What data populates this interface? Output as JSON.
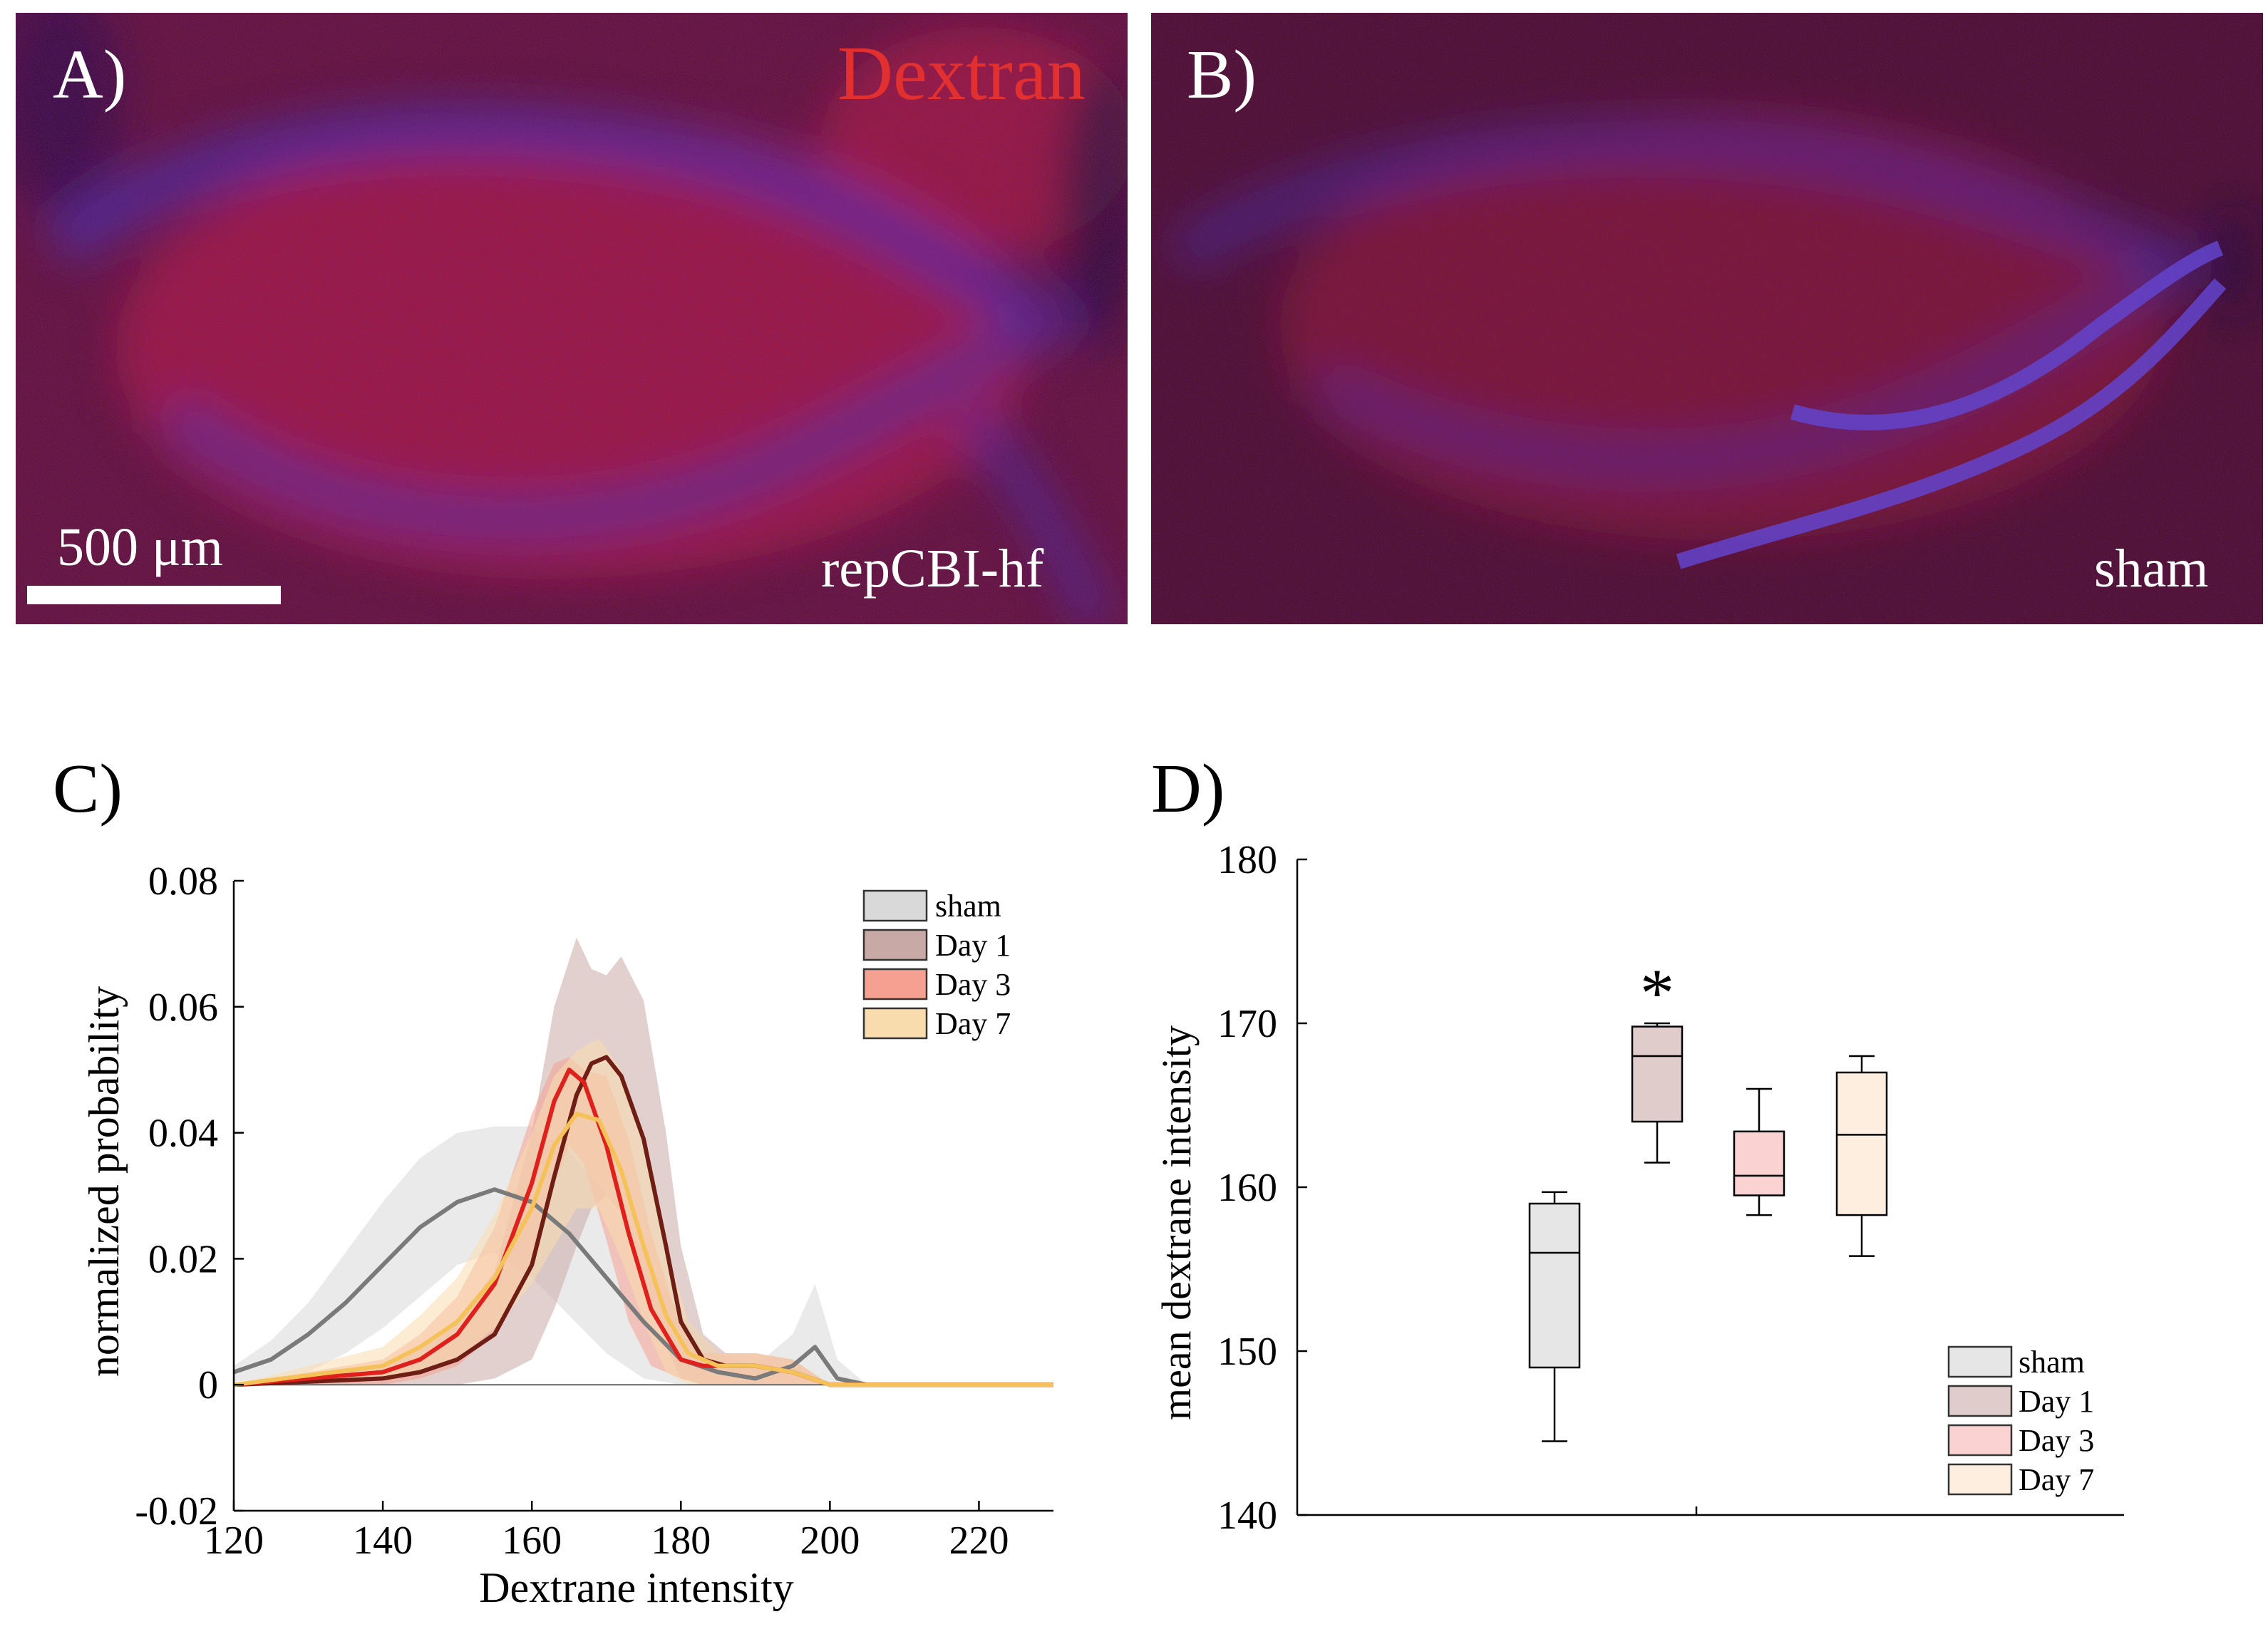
{
  "panels": {
    "a": {
      "label": "A)",
      "stain_label": "Dextran",
      "scale_bar_label": "500 μm",
      "condition_label": "repCBI-hf",
      "colors": {
        "base": "#5a0a1e",
        "red": "#c0142a",
        "blue": "#3a2aa8"
      }
    },
    "b": {
      "label": "B)",
      "condition_label": "sham",
      "colors": {
        "base": "#450816",
        "red": "#9a1022",
        "blue": "#3a2aa8"
      }
    },
    "c": {
      "label": "C)"
    },
    "d": {
      "label": "D)"
    }
  },
  "chart_data": [
    {
      "panel": "C",
      "type": "line",
      "title": "",
      "xlabel": "Dextrane intensity",
      "ylabel": "normalized probability",
      "xlim": [
        120,
        230
      ],
      "ylim": [
        -0.02,
        0.08
      ],
      "xticks": [
        120,
        140,
        160,
        180,
        200,
        220
      ],
      "xtick_labels": [
        "120",
        "140",
        "160",
        "180",
        "200",
        "220"
      ],
      "yticks": [
        -0.02,
        0,
        0.02,
        0.04,
        0.06,
        0.08
      ],
      "ytick_labels": [
        "-0.02",
        "0",
        "0.02",
        "0.04",
        "0.06",
        "0.08"
      ],
      "legend": {
        "position": "top-right",
        "entries": [
          "sham",
          "Day 1",
          "Day 3",
          "Day 7"
        ]
      },
      "series": [
        {
          "name": "sham",
          "color": "#7a7a7a",
          "band_color": "#d9d9d9",
          "x": [
            120,
            125,
            130,
            135,
            140,
            145,
            150,
            155,
            160,
            165,
            170,
            175,
            180,
            185,
            190,
            195,
            198,
            201,
            205,
            230
          ],
          "y": [
            0.002,
            0.004,
            0.008,
            0.013,
            0.019,
            0.025,
            0.029,
            0.031,
            0.029,
            0.024,
            0.017,
            0.01,
            0.004,
            0.002,
            0.001,
            0.003,
            0.006,
            0.001,
            0,
            0
          ],
          "low": [
            0.0005,
            0.001,
            0.002,
            0.005,
            0.009,
            0.014,
            0.019,
            0.021,
            0.017,
            0.011,
            0.005,
            0.001,
            0,
            0,
            0,
            0,
            0.001,
            0,
            0,
            0
          ],
          "high": [
            0.003,
            0.007,
            0.013,
            0.021,
            0.029,
            0.036,
            0.04,
            0.041,
            0.041,
            0.037,
            0.03,
            0.021,
            0.011,
            0.005,
            0.003,
            0.008,
            0.016,
            0.004,
            0,
            0
          ]
        },
        {
          "name": "Day 1",
          "color": "#6e1e14",
          "band_color": "#c9a9a6",
          "x": [
            120,
            140,
            145,
            150,
            155,
            160,
            163,
            166,
            168,
            170,
            172,
            175,
            178,
            180,
            183,
            186,
            190,
            195,
            200,
            230
          ],
          "y": [
            0,
            0.001,
            0.002,
            0.004,
            0.008,
            0.019,
            0.033,
            0.046,
            0.051,
            0.052,
            0.049,
            0.039,
            0.022,
            0.01,
            0.004,
            0.003,
            0.003,
            0.002,
            0,
            0
          ],
          "low": [
            0,
            0,
            0,
            0,
            0.001,
            0.004,
            0.012,
            0.022,
            0.028,
            0.03,
            0.027,
            0.017,
            0.006,
            0.001,
            0,
            0,
            0,
            0,
            0,
            0
          ],
          "high": [
            0,
            0.003,
            0.006,
            0.01,
            0.018,
            0.04,
            0.06,
            0.071,
            0.066,
            0.065,
            0.068,
            0.061,
            0.04,
            0.022,
            0.008,
            0.005,
            0.005,
            0.004,
            0,
            0
          ]
        },
        {
          "name": "Day 3",
          "color": "#e0201c",
          "band_color": "#f5a090",
          "x": [
            120,
            140,
            145,
            150,
            155,
            160,
            163,
            165,
            167,
            170,
            173,
            176,
            180,
            183,
            186,
            190,
            195,
            200,
            230
          ],
          "y": [
            0,
            0.002,
            0.004,
            0.008,
            0.016,
            0.032,
            0.045,
            0.05,
            0.048,
            0.038,
            0.024,
            0.012,
            0.004,
            0.003,
            0.003,
            0.003,
            0.002,
            0,
            0
          ],
          "low": [
            0,
            0,
            0.001,
            0.003,
            0.008,
            0.02,
            0.032,
            0.038,
            0.035,
            0.023,
            0.01,
            0.003,
            0.001,
            0,
            0,
            0,
            0,
            0,
            0
          ],
          "high": [
            0,
            0.004,
            0.008,
            0.014,
            0.025,
            0.043,
            0.051,
            0.052,
            0.05,
            0.049,
            0.039,
            0.024,
            0.009,
            0.005,
            0.005,
            0.005,
            0.004,
            0,
            0
          ]
        },
        {
          "name": "Day 7",
          "color": "#f5c25a",
          "band_color": "#f9dcae",
          "x": [
            120,
            140,
            145,
            150,
            155,
            160,
            163,
            166,
            169,
            172,
            175,
            178,
            181,
            185,
            190,
            195,
            200,
            230
          ],
          "y": [
            0,
            0.003,
            0.006,
            0.01,
            0.017,
            0.028,
            0.038,
            0.043,
            0.042,
            0.034,
            0.022,
            0.011,
            0.005,
            0.003,
            0.003,
            0.002,
            0,
            0
          ],
          "low": [
            0,
            0.001,
            0.002,
            0.004,
            0.009,
            0.016,
            0.022,
            0.028,
            0.028,
            0.02,
            0.01,
            0.002,
            0,
            0,
            0,
            0,
            0,
            0
          ],
          "high": [
            0,
            0.006,
            0.011,
            0.017,
            0.027,
            0.04,
            0.049,
            0.053,
            0.055,
            0.05,
            0.038,
            0.022,
            0.01,
            0.005,
            0.005,
            0.004,
            0,
            0
          ]
        }
      ]
    },
    {
      "panel": "D",
      "type": "box",
      "title": "",
      "xlabel": "",
      "ylabel": "mean dextrane intensity",
      "ylim": [
        140,
        180
      ],
      "yticks": [
        140,
        150,
        160,
        170,
        180
      ],
      "ytick_labels": [
        "140",
        "150",
        "160",
        "170",
        "180"
      ],
      "legend": {
        "position": "bottom-right",
        "entries": [
          "sham",
          "Day 1",
          "Day 3",
          "Day 7"
        ]
      },
      "annotation": {
        "text": "*",
        "group": "Day 1"
      },
      "groups": [
        {
          "name": "sham",
          "fill": "#e6e6e6",
          "whisker_low": 144.5,
          "q1": 149.0,
          "median": 156.0,
          "q3": 159.0,
          "whisker_high": 159.7
        },
        {
          "name": "Day 1",
          "fill": "#e0cccb",
          "whisker_low": 161.5,
          "q1": 164.0,
          "median": 168.0,
          "q3": 169.8,
          "whisker_high": 170.0
        },
        {
          "name": "Day 3",
          "fill": "#fbd2d2",
          "whisker_low": 158.3,
          "q1": 159.5,
          "median": 160.7,
          "q3": 163.4,
          "whisker_high": 166.0
        },
        {
          "name": "Day 7",
          "fill": "#fdeedf",
          "whisker_low": 155.8,
          "q1": 158.3,
          "median": 163.2,
          "q3": 167.0,
          "whisker_high": 168.0
        }
      ]
    }
  ]
}
